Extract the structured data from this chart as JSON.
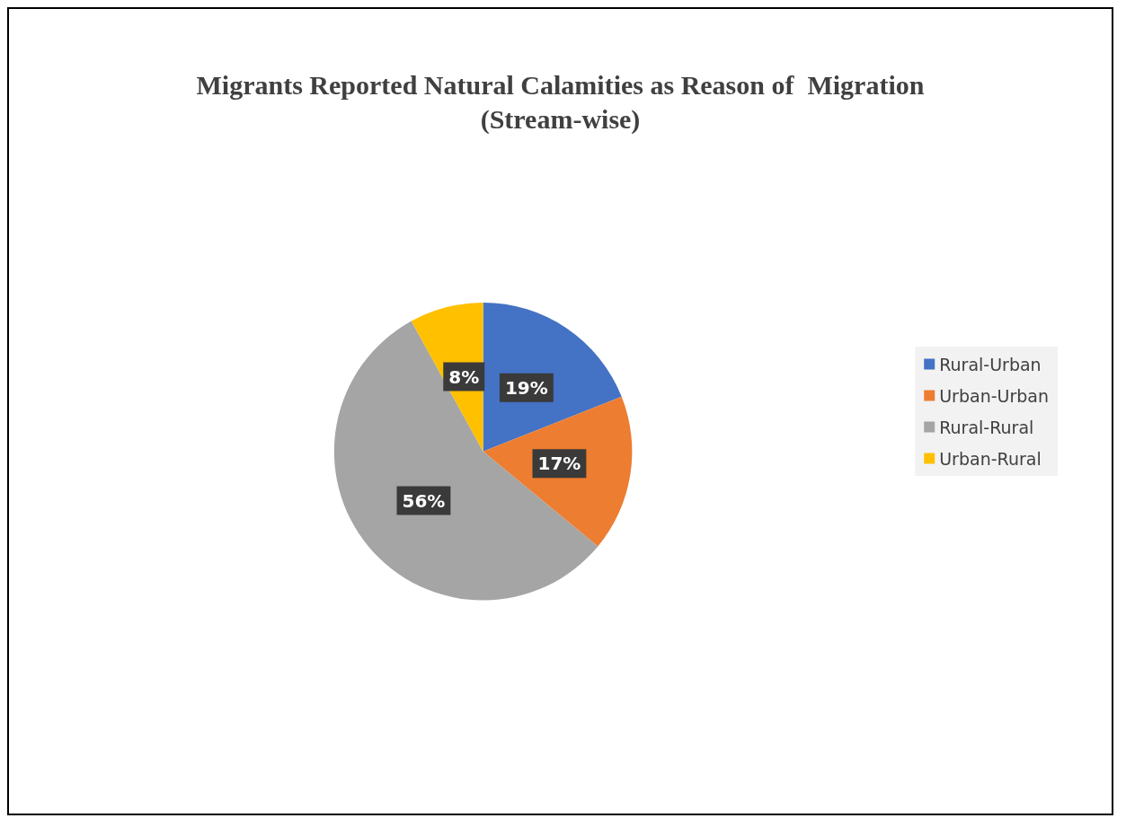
{
  "chart_data": {
    "type": "pie",
    "title": "Migrants Reported Natural Calamities as Reason of  Migration\n(Stream-wise)",
    "categories": [
      "Rural-Urban",
      "Urban-Urban",
      "Rural-Rural",
      "Urban-Rural"
    ],
    "values": [
      19,
      17,
      56,
      8
    ],
    "colors": [
      "#4472c4",
      "#ed7d31",
      "#a5a5a5",
      "#ffc000"
    ],
    "value_labels": [
      "19%",
      "17%",
      "56%",
      "8%"
    ],
    "legend": "right"
  }
}
